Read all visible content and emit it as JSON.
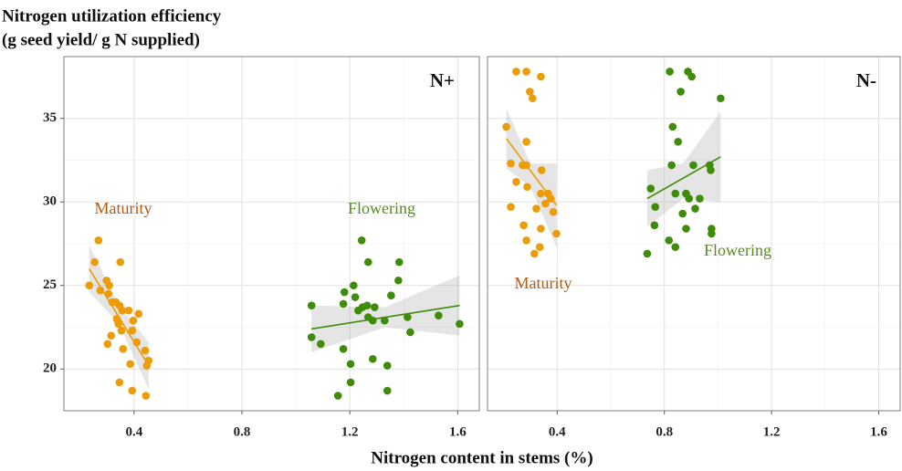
{
  "shared": {
    "ylabel": [
      "Nitrogen utilization efficiency",
      "(g seed yield/ g N supplied)"
    ],
    "xlabel": "Nitrogen content in stems (%)"
  },
  "chart_data": [
    {
      "type": "scatter",
      "panel_label": "N+",
      "xlim": [
        0.14,
        1.68
      ],
      "ylim": [
        17.5,
        38.7
      ],
      "xticks": [
        0.4,
        0.8,
        1.2,
        1.6
      ],
      "yticks": [
        20,
        25,
        30,
        35
      ],
      "grid": true,
      "series": [
        {
          "name": "Maturity",
          "color": "#eb9c07",
          "label_color": "#b05a14",
          "x": [
            0.268,
            0.254,
            0.234,
            0.275,
            0.298,
            0.308,
            0.305,
            0.319,
            0.332,
            0.346,
            0.356,
            0.336,
            0.342,
            0.353,
            0.315,
            0.302,
            0.359,
            0.38,
            0.397,
            0.417,
            0.393,
            0.41,
            0.441,
            0.454,
            0.447,
            0.386,
            0.346,
            0.393,
            0.444,
            0.349
          ],
          "values": [
            27.7,
            26.4,
            25.0,
            24.7,
            25.3,
            25.0,
            24.5,
            24.0,
            24.0,
            23.8,
            23.5,
            23.0,
            22.7,
            22.3,
            22.0,
            21.5,
            21.2,
            23.5,
            22.9,
            23.3,
            22.3,
            21.6,
            21.1,
            20.5,
            20.2,
            20.3,
            19.2,
            18.7,
            18.4,
            26.4
          ],
          "fit": {
            "x": [
              0.234,
              0.454
            ],
            "values": [
              26.0,
              20.2
            ]
          },
          "band": {
            "x": [
              0.234,
              0.344,
              0.454
            ],
            "lower": [
              24.6,
              22.7,
              18.8
            ],
            "upper": [
              27.4,
              23.8,
              21.6
            ]
          }
        },
        {
          "name": "Flowering",
          "color": "#3f8c0a",
          "label_color": "#5a8a20",
          "x": [
            1.058,
            1.058,
            1.092,
            1.18,
            1.176,
            1.214,
            1.22,
            1.231,
            1.247,
            1.264,
            1.268,
            1.285,
            1.176,
            1.203,
            1.203,
            1.156,
            1.285,
            1.244,
            1.268,
            1.292,
            1.329,
            1.353,
            1.383,
            1.38,
            1.414,
            1.424,
            1.339,
            1.339,
            1.529,
            1.607
          ],
          "values": [
            23.8,
            21.9,
            21.5,
            24.6,
            23.9,
            25.0,
            24.3,
            23.5,
            23.7,
            23.8,
            23.1,
            22.9,
            21.2,
            20.3,
            19.2,
            18.4,
            20.6,
            27.7,
            26.4,
            23.7,
            22.9,
            24.4,
            26.4,
            25.3,
            23.1,
            22.2,
            20.2,
            18.7,
            23.2,
            22.7
          ],
          "fit": {
            "x": [
              1.058,
              1.607
            ],
            "values": [
              22.4,
              23.8
            ]
          },
          "band": {
            "x": [
              1.058,
              1.33,
              1.607
            ],
            "lower": [
              21.0,
              22.5,
              22.0
            ],
            "upper": [
              23.8,
              23.7,
              25.6
            ]
          }
        }
      ]
    },
    {
      "type": "scatter",
      "panel_label": "N-",
      "xlim": [
        0.14,
        1.68
      ],
      "ylim": [
        17.5,
        38.7
      ],
      "xticks": [
        0.4,
        0.8,
        1.2,
        1.6
      ],
      "yticks": [
        20,
        25,
        30,
        35
      ],
      "grid": true,
      "series": [
        {
          "name": "Maturity",
          "color": "#eb9c07",
          "label_color": "#b05a14",
          "x": [
            0.247,
            0.285,
            0.298,
            0.308,
            0.339,
            0.21,
            0.285,
            0.227,
            0.271,
            0.285,
            0.342,
            0.339,
            0.366,
            0.376,
            0.247,
            0.288,
            0.227,
            0.356,
            0.386,
            0.322,
            0.275,
            0.397,
            0.285,
            0.339,
            0.315,
            0.335
          ],
          "values": [
            37.8,
            37.8,
            36.6,
            36.2,
            37.5,
            34.5,
            33.6,
            32.3,
            32.2,
            32.2,
            31.9,
            30.5,
            30.5,
            30.2,
            31.2,
            30.9,
            29.7,
            29.9,
            29.4,
            29.6,
            28.6,
            28.1,
            27.7,
            28.4,
            26.9,
            27.3
          ],
          "fit": {
            "x": [
              0.21,
              0.397
            ],
            "values": [
              33.8,
              29.8
            ]
          },
          "band": {
            "x": [
              0.21,
              0.3,
              0.397
            ],
            "lower": [
              32.0,
              30.9,
              27.3
            ],
            "upper": [
              35.6,
              32.3,
              32.3
            ]
          }
        },
        {
          "name": "Flowering",
          "color": "#3f8c0a",
          "label_color": "#5a8a20",
          "x": [
            0.736,
            0.749,
            0.766,
            0.763,
            0.817,
            0.841,
            0.82,
            0.888,
            0.902,
            0.861,
            0.831,
            0.851,
            0.827,
            0.841,
            0.868,
            0.881,
            0.892,
            0.908,
            0.915,
            0.932,
            0.969,
            0.973,
            0.976,
            0.976,
            1.01,
            0.881
          ],
          "values": [
            26.9,
            30.8,
            29.7,
            28.6,
            27.7,
            27.3,
            37.8,
            37.8,
            37.5,
            36.6,
            34.5,
            33.6,
            32.2,
            30.5,
            29.3,
            30.5,
            30.2,
            32.2,
            29.6,
            30.2,
            32.2,
            31.9,
            28.1,
            28.4,
            36.2,
            28.4
          ],
          "fit": {
            "x": [
              0.736,
              1.01
            ],
            "values": [
              30.2,
              32.7
            ]
          },
          "band": {
            "x": [
              0.736,
              0.87,
              1.01
            ],
            "lower": [
              28.5,
              30.2,
              30.0
            ],
            "upper": [
              31.9,
              32.3,
              35.4
            ]
          }
        }
      ]
    }
  ]
}
